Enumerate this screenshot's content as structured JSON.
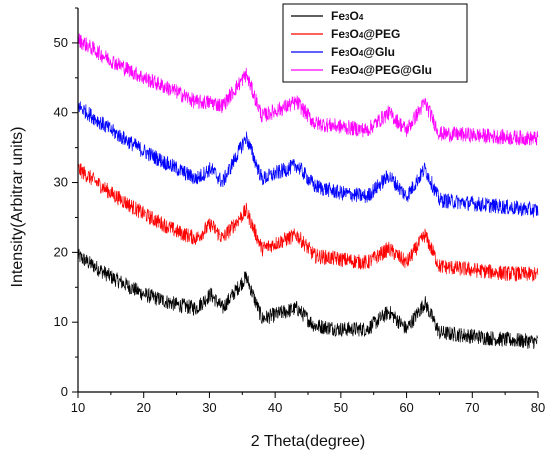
{
  "chart_data": {
    "type": "line",
    "title": "",
    "xlabel": "2 Theta(degree)",
    "ylabel": "Intensity(Arbitrar units)",
    "xlim": [
      10,
      80
    ],
    "ylim": [
      0,
      55
    ],
    "xticks": [
      10,
      20,
      30,
      40,
      50,
      60,
      70,
      80
    ],
    "yticks": [
      0,
      10,
      20,
      30,
      40,
      50
    ],
    "grid": false,
    "legend_position": "top-right",
    "peaks_2theta": [
      30.2,
      35.6,
      43.3,
      57.3,
      62.8
    ],
    "series": [
      {
        "name": "Fe3O4",
        "name_parts": [
          "Fe",
          "3",
          "O",
          "4",
          ""
        ],
        "color": "#000000",
        "x": [
          10,
          15,
          20,
          25,
          28,
          30.2,
          32,
          35.6,
          38,
          43.3,
          46,
          50,
          54,
          57.3,
          60,
          62.8,
          65,
          70,
          75,
          80
        ],
        "y": [
          19.5,
          16.5,
          14.0,
          12.5,
          12.0,
          14.0,
          12.0,
          16.5,
          10.5,
          12.0,
          9.5,
          9.0,
          9.0,
          11.5,
          9.0,
          12.8,
          8.5,
          8.0,
          7.5,
          7.2
        ]
      },
      {
        "name": "Fe3O4@PEG",
        "name_parts": [
          "Fe",
          "3",
          "O",
          "4",
          "@PEG"
        ],
        "color": "#ff0000",
        "x": [
          10,
          15,
          20,
          25,
          28,
          30.2,
          32,
          35.6,
          38,
          43.3,
          46,
          50,
          54,
          57.3,
          60,
          62.8,
          65,
          70,
          75,
          80
        ],
        "y": [
          32.0,
          28.5,
          25.5,
          23.0,
          22.0,
          24.0,
          22.0,
          26.0,
          20.5,
          22.5,
          19.5,
          19.0,
          18.5,
          20.5,
          18.5,
          22.5,
          18.0,
          17.5,
          17.0,
          16.8
        ]
      },
      {
        "name": "Fe3O4@Glu",
        "name_parts": [
          "Fe",
          "3",
          "O",
          "4",
          "@Glu"
        ],
        "color": "#0000ff",
        "x": [
          10,
          15,
          20,
          25,
          28,
          30.2,
          32,
          35.6,
          38,
          43.3,
          46,
          50,
          54,
          57.3,
          60,
          62.8,
          65,
          70,
          75,
          80
        ],
        "y": [
          41.0,
          37.5,
          34.5,
          32.0,
          30.5,
          32.0,
          30.0,
          36.5,
          30.5,
          32.5,
          29.5,
          28.5,
          28.0,
          31.0,
          28.0,
          32.0,
          27.5,
          27.0,
          26.5,
          26.0
        ]
      },
      {
        "name": "Fe3O4@PEG@Glu",
        "name_parts": [
          "Fe",
          "3",
          "O",
          "4",
          "@PEG@Glu"
        ],
        "color": "#ff00ff",
        "x": [
          10,
          15,
          20,
          25,
          28,
          30.2,
          32,
          35.6,
          38,
          43.3,
          46,
          50,
          54,
          57.3,
          60,
          62.8,
          65,
          70,
          75,
          80
        ],
        "y": [
          50.5,
          47.5,
          45.0,
          43.0,
          41.5,
          41.5,
          41.0,
          45.5,
          39.5,
          41.5,
          38.5,
          38.0,
          37.5,
          40.0,
          37.5,
          41.5,
          37.0,
          36.8,
          36.5,
          36.3
        ]
      }
    ]
  }
}
